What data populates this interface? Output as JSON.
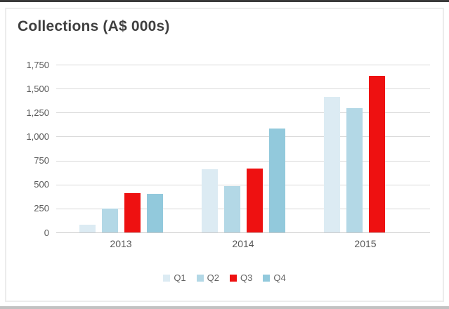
{
  "page": {
    "title": "Collections (A$ 000s)"
  },
  "chart_data": {
    "type": "bar",
    "title": "Collections (A$ 000s)",
    "categories": [
      "2013",
      "2014",
      "2015"
    ],
    "series": [
      {
        "name": "Q1",
        "color": "#dcebf3",
        "values": [
          80,
          660,
          1410
        ]
      },
      {
        "name": "Q2",
        "color": "#b3d8e6",
        "values": [
          250,
          480,
          1300
        ]
      },
      {
        "name": "Q3",
        "color": "#ee1111",
        "values": [
          410,
          665,
          1630
        ]
      },
      {
        "name": "Q4",
        "color": "#92c9dc",
        "values": [
          405,
          1085,
          null
        ]
      }
    ],
    "xlabel": "",
    "ylabel": "",
    "ylim": [
      0,
      1750
    ],
    "ytick_step": 250,
    "ytick_labels": [
      "0",
      "250",
      "500",
      "750",
      "1,000",
      "1,250",
      "1,500",
      "1,750"
    ],
    "grid": true,
    "legend_position": "bottom",
    "accent_colors": {
      "title_text": "#3f3f3f",
      "axis_text": "#595959",
      "gridline": "#d9d9d9"
    }
  }
}
